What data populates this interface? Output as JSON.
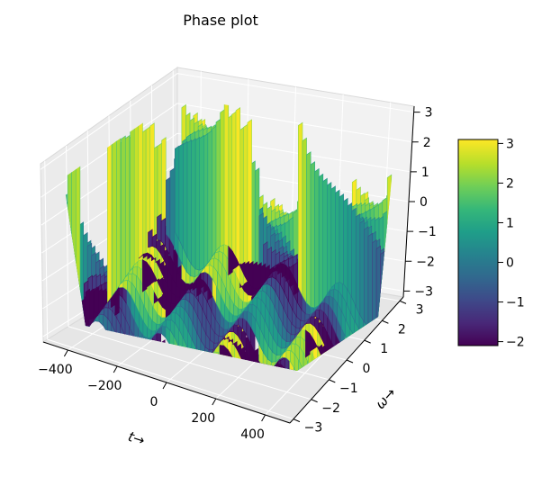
{
  "chart_data": {
    "type": "surface-3d",
    "title": "Phase plot",
    "xlabel": "t→",
    "ylabel": "ω→",
    "zlabel": "",
    "x_ticks": [
      -400,
      -200,
      0,
      200,
      400
    ],
    "y_ticks": [
      -3,
      -2,
      -1,
      0,
      1,
      2,
      3
    ],
    "z_ticks": [
      -3,
      -2,
      -1,
      0,
      1,
      2,
      3
    ],
    "xlim": [
      -500,
      500
    ],
    "ylim": [
      -3.2,
      3.2
    ],
    "zlim": [
      -3.2,
      3.2
    ],
    "grid": true,
    "colormap": "viridis",
    "colorbar": {
      "ticks": [
        -2,
        -1,
        0,
        1,
        2,
        3
      ],
      "range": [
        -2.1,
        3.1
      ],
      "colors": [
        "#440154",
        "#482878",
        "#3e4989",
        "#31688e",
        "#26828e",
        "#1f9e89",
        "#35b779",
        "#6ece58",
        "#b5de2b",
        "#fde725"
      ]
    }
  }
}
